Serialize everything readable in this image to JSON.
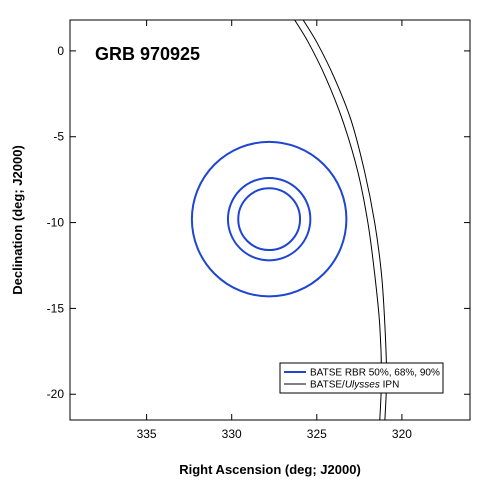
{
  "chart_data": {
    "type": "scatter",
    "title": "GRB 970925",
    "xlabel": "Right Ascension (deg; J2000)",
    "ylabel": "Declination (deg; J2000)",
    "xlim": [
      339.5,
      316
    ],
    "ylim": [
      -21.5,
      1.8
    ],
    "x_ticks": [
      335,
      330,
      325,
      320
    ],
    "y_ticks": [
      0,
      -5,
      -10,
      -15,
      -20
    ],
    "grid": false,
    "legend_position": "bottom-right",
    "colors": {
      "batse": "#1e46d2",
      "ipn": "#000000"
    },
    "batse_center": {
      "ra": 327.8,
      "dec": -9.8
    },
    "batse_radii_deg": [
      1.8,
      2.4,
      4.5
    ],
    "ipn_annulus": {
      "outer": [
        [
          325.8,
          1.8
        ],
        [
          325.0,
          0.5
        ],
        [
          324.0,
          -1.5
        ],
        [
          323.0,
          -4.0
        ],
        [
          322.2,
          -7.0
        ],
        [
          321.6,
          -10.0
        ],
        [
          321.2,
          -13.0
        ],
        [
          321.0,
          -16.0
        ],
        [
          320.9,
          -19.0
        ],
        [
          321.0,
          -21.5
        ]
      ],
      "inner": [
        [
          326.3,
          1.8
        ],
        [
          325.5,
          0.5
        ],
        [
          324.5,
          -1.5
        ],
        [
          323.5,
          -4.0
        ],
        [
          322.6,
          -7.0
        ],
        [
          322.0,
          -10.0
        ],
        [
          321.6,
          -13.0
        ],
        [
          321.3,
          -16.0
        ],
        [
          321.2,
          -19.0
        ],
        [
          321.3,
          -21.5
        ]
      ]
    },
    "legend": {
      "batse_label": "BATSE RBR 50%, 68%, 90%",
      "ipn_prefix": "BATSE/",
      "ipn_italic": "Ulysses",
      "ipn_suffix": " IPN"
    }
  }
}
